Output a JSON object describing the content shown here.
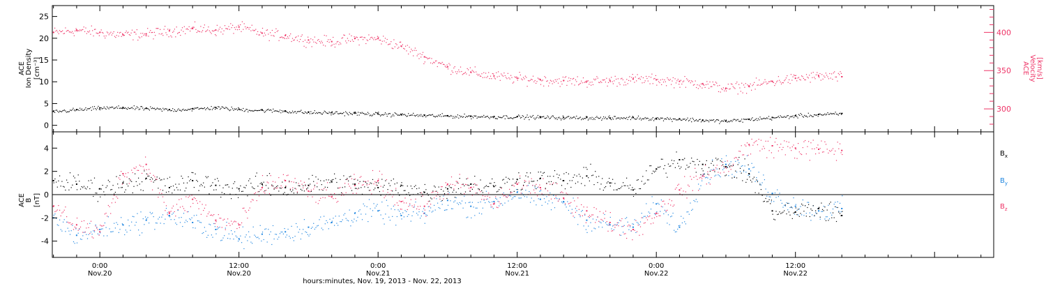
{
  "colors": {
    "black": "#000000",
    "pink": "#ee3366",
    "blue": "#1f86e0",
    "axis": "#000000"
  },
  "xaxis": {
    "label": "hours:minutes, Nov. 19, 2013 - Nov. 22, 2013",
    "ticks": [
      {
        "time": "0:00",
        "date": "Nov.20",
        "hours": 24
      },
      {
        "time": "12:00",
        "date": "Nov.20",
        "hours": 36
      },
      {
        "time": "0:00",
        "date": "Nov.21",
        "hours": 48
      },
      {
        "time": "12:00",
        "date": "Nov.21",
        "hours": 60
      },
      {
        "time": "0:00",
        "date": "Nov.22",
        "hours": 72
      },
      {
        "time": "12:00",
        "date": "Nov.22",
        "hours": 84
      }
    ],
    "range_hours": [
      19.9,
      101.1
    ]
  },
  "top_panel": {
    "left_axis_label": [
      "ACE",
      "Ion Density",
      "[cm⁻³]"
    ],
    "left_ticks": [
      "0",
      "5",
      "10",
      "15",
      "20",
      "25"
    ],
    "right_axis_label": [
      "ACE",
      "Velocity",
      "[km/s]"
    ],
    "right_ticks": [
      "300",
      "350",
      "400"
    ]
  },
  "bottom_panel": {
    "axis_label": [
      "ACE",
      "B",
      "[nT]"
    ],
    "ticks": [
      "-4",
      "-2",
      "0",
      "2",
      "4"
    ],
    "legend": [
      {
        "name": "B",
        "sub": "x",
        "color": "#000000"
      },
      {
        "name": "B",
        "sub": "y",
        "color": "#1f86e0"
      },
      {
        "name": "B",
        "sub": "z",
        "color": "#ee3366"
      }
    ]
  },
  "chart_data": [
    {
      "type": "scatter",
      "title": "",
      "xlabel": "hours:minutes, Nov. 19, 2013 - Nov. 22, 2013",
      "ylabel": "ACE Ion Density [cm⁻³] / ACE Velocity [km/s]",
      "ylim": [
        -1.5,
        27.5
      ],
      "ylim_right": [
        270,
        435
      ],
      "x_unit": "hours since Nov. 19, 2013 00:00",
      "series": [
        {
          "name": "Ion Density",
          "axis": "left",
          "color": "#000000",
          "x": [
            20,
            22,
            24,
            26,
            28,
            30,
            32,
            34,
            36,
            38,
            40,
            42,
            44,
            46,
            48,
            50,
            52,
            54,
            56,
            58,
            60,
            62,
            64,
            66,
            68,
            70,
            72,
            74,
            76,
            78,
            80,
            82,
            84,
            86,
            88
          ],
          "y": [
            3.2,
            3.6,
            4.0,
            4.1,
            3.9,
            3.6,
            3.8,
            4.1,
            3.7,
            3.5,
            3.3,
            3.0,
            2.9,
            2.8,
            2.6,
            2.5,
            2.3,
            2.2,
            2.1,
            2.0,
            2.0,
            1.9,
            1.8,
            1.8,
            1.7,
            1.8,
            1.6,
            1.5,
            1.2,
            1.0,
            1.4,
            1.8,
            2.2,
            2.5,
            2.7
          ]
        },
        {
          "name": "Velocity",
          "axis": "right",
          "color": "#ee3366",
          "x": [
            20,
            22,
            24,
            26,
            28,
            30,
            32,
            34,
            36,
            38,
            40,
            42,
            44,
            46,
            48,
            50,
            52,
            54,
            56,
            58,
            60,
            62,
            64,
            66,
            68,
            70,
            72,
            74,
            76,
            78,
            80,
            82,
            84,
            86,
            88
          ],
          "y": [
            400,
            403,
            400,
            397,
            398,
            402,
            405,
            403,
            407,
            399,
            396,
            390,
            388,
            392,
            392,
            382,
            368,
            355,
            348,
            343,
            340,
            338,
            337,
            336,
            337,
            339,
            338,
            336,
            333,
            327,
            330,
            336,
            340,
            343,
            342
          ]
        }
      ]
    },
    {
      "type": "scatter",
      "title": "",
      "xlabel": "hours:minutes, Nov. 19, 2013 - Nov. 22, 2013",
      "ylabel": "ACE B [nT]",
      "ylim": [
        -5.4,
        5.4
      ],
      "x_unit": "hours since Nov. 19, 2013 00:00",
      "series": [
        {
          "name": "Bx",
          "color": "#000000",
          "x": [
            20,
            22,
            24,
            26,
            28,
            30,
            32,
            34,
            36,
            38,
            40,
            42,
            44,
            46,
            48,
            50,
            52,
            54,
            56,
            58,
            60,
            62,
            64,
            66,
            68,
            70,
            72,
            74,
            76,
            78,
            80,
            82,
            84,
            86,
            88
          ],
          "y": [
            1.2,
            0.9,
            0.5,
            1.0,
            1.4,
            0.6,
            1.2,
            0.8,
            0.5,
            0.9,
            0.6,
            0.8,
            1.1,
            0.9,
            0.6,
            0.8,
            0.2,
            0.5,
            0.9,
            0.7,
            1.3,
            1.4,
            1.2,
            1.6,
            1.0,
            0.4,
            2.2,
            3.0,
            2.6,
            2.4,
            1.8,
            -1.4,
            -1.5,
            -1.2,
            -1.8
          ]
        },
        {
          "name": "By",
          "color": "#1f86e0",
          "x": [
            20,
            22,
            24,
            26,
            28,
            30,
            32,
            34,
            36,
            38,
            40,
            42,
            44,
            46,
            48,
            50,
            52,
            54,
            56,
            58,
            60,
            62,
            64,
            66,
            68,
            70,
            72,
            74,
            76,
            78,
            80,
            82,
            84,
            86,
            88
          ],
          "y": [
            -2.0,
            -3.5,
            -3.0,
            -2.6,
            -2.2,
            -1.8,
            -2.4,
            -3.0,
            -3.8,
            -3.4,
            -3.2,
            -2.8,
            -2.4,
            -1.6,
            -1.4,
            -1.8,
            -1.6,
            -0.5,
            -1.0,
            -0.6,
            0.2,
            -0.4,
            -0.6,
            -2.2,
            -2.6,
            -2.8,
            -0.8,
            -2.8,
            1.6,
            2.6,
            2.2,
            0.1,
            -1.0,
            -1.4,
            -1.2
          ]
        },
        {
          "name": "Bz",
          "color": "#ee3366",
          "x": [
            20,
            22,
            24,
            26,
            28,
            30,
            32,
            34,
            36,
            38,
            40,
            42,
            44,
            46,
            48,
            50,
            52,
            54,
            56,
            58,
            60,
            62,
            64,
            66,
            68,
            70,
            72,
            74,
            76,
            78,
            80,
            82,
            84,
            86,
            88
          ],
          "y": [
            -1.0,
            -2.6,
            -3.2,
            1.8,
            2.6,
            -1.6,
            -0.4,
            -2.2,
            -2.6,
            0.6,
            1.2,
            0.3,
            -0.2,
            0.8,
            1.2,
            -0.6,
            -1.0,
            0.9,
            0.6,
            -0.8,
            0.9,
            0.6,
            -0.3,
            -1.4,
            -2.4,
            -3.0,
            -1.6,
            0.4,
            1.6,
            2.4,
            4.3,
            4.2,
            4.0,
            3.9,
            3.8
          ]
        }
      ]
    }
  ]
}
